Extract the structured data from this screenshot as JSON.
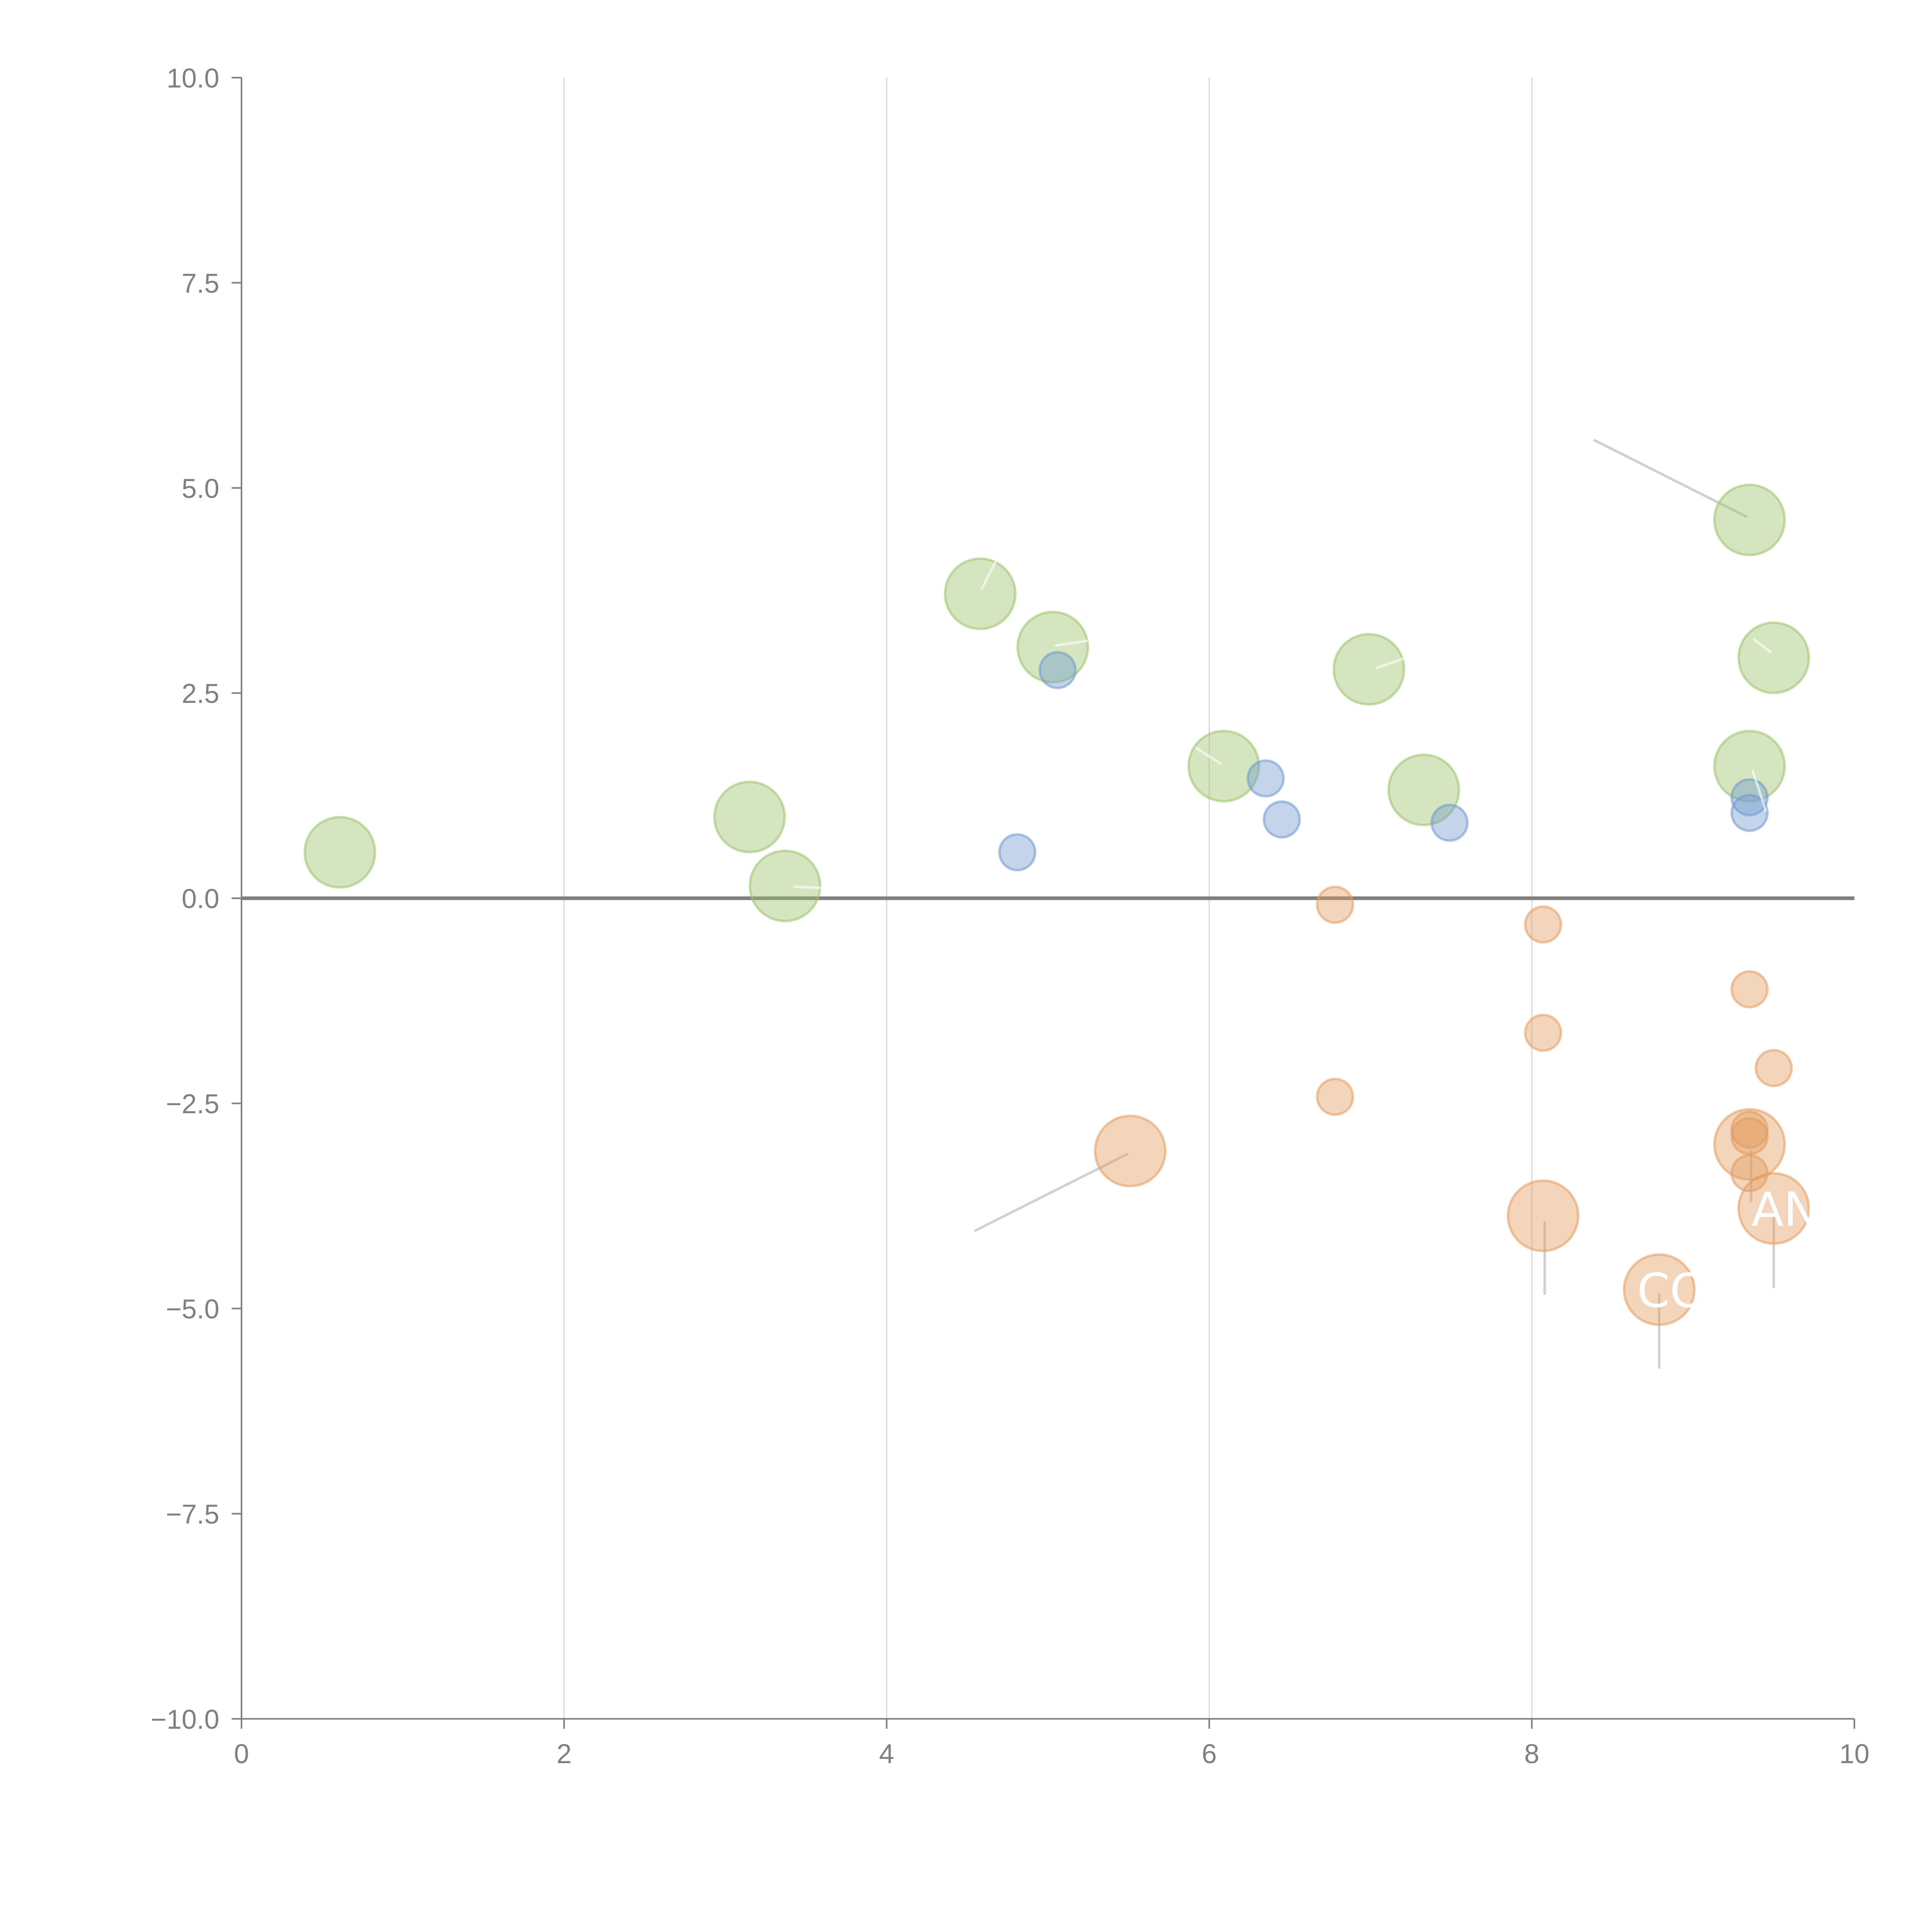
{
  "chart_data": {
    "type": "scatter",
    "subtype": "bubble",
    "title": "",
    "xlabel": "",
    "ylabel": "",
    "xlim": [
      0,
      10
    ],
    "ylim": [
      -10,
      10
    ],
    "x_ticks": [
      "0",
      "2",
      "4",
      "6",
      "8",
      "10"
    ],
    "x_tick_values": [
      0,
      2,
      4,
      6,
      8,
      10
    ],
    "y_ticks": [
      "10.0",
      "7.5",
      "5.0",
      "2.5",
      "0.0",
      "−2.5",
      "−5.0",
      "−7.5",
      "−10.0"
    ],
    "y_tick_values": [
      10,
      7.5,
      5,
      2.5,
      0,
      -2.5,
      -5,
      -7.5,
      -10
    ],
    "grid": "vertical-only",
    "zero_line": true,
    "legend": "none",
    "series": [
      {
        "name": "green",
        "color": "#9cc26a",
        "size": "large",
        "points": [
          {
            "x": 0.61,
            "y": 0.56
          },
          {
            "x": 3.15,
            "y": 0.99
          },
          {
            "x": 3.37,
            "y": 0.15
          },
          {
            "x": 4.58,
            "y": 3.71
          },
          {
            "x": 5.03,
            "y": 3.06
          },
          {
            "x": 6.09,
            "y": 1.61
          },
          {
            "x": 6.99,
            "y": 2.79
          },
          {
            "x": 7.33,
            "y": 1.32
          },
          {
            "x": 9.35,
            "y": 4.61
          },
          {
            "x": 9.5,
            "y": 2.93
          },
          {
            "x": 9.35,
            "y": 1.61
          }
        ]
      },
      {
        "name": "blue",
        "color": "#6f98d0",
        "size": "small",
        "points": [
          {
            "x": 5.06,
            "y": 2.78
          },
          {
            "x": 4.81,
            "y": 0.56
          },
          {
            "x": 6.35,
            "y": 1.46
          },
          {
            "x": 6.45,
            "y": 0.96
          },
          {
            "x": 7.49,
            "y": 0.92
          },
          {
            "x": 9.35,
            "y": 1.23
          },
          {
            "x": 9.35,
            "y": 1.04
          }
        ]
      },
      {
        "name": "orange",
        "color": "#e39a5c",
        "points": [
          {
            "x": 6.78,
            "y": -0.08,
            "size": "small"
          },
          {
            "x": 8.07,
            "y": -0.32,
            "size": "small"
          },
          {
            "x": 6.78,
            "y": -2.42,
            "size": "small"
          },
          {
            "x": 8.07,
            "y": -1.64,
            "size": "small"
          },
          {
            "x": 9.35,
            "y": -1.11,
            "size": "small"
          },
          {
            "x": 9.5,
            "y": -2.07,
            "size": "small"
          },
          {
            "x": 9.35,
            "y": -2.82,
            "size": "small"
          },
          {
            "x": 9.35,
            "y": -2.9,
            "size": "small"
          },
          {
            "x": 9.35,
            "y": -3.35,
            "size": "small"
          },
          {
            "x": 5.51,
            "y": -3.08,
            "size": "large"
          },
          {
            "x": 9.35,
            "y": -3.0,
            "size": "large"
          },
          {
            "x": 8.07,
            "y": -3.87,
            "size": "large"
          },
          {
            "x": 9.5,
            "y": -3.78,
            "size": "large"
          },
          {
            "x": 8.79,
            "y": -4.77,
            "size": "large"
          }
        ]
      }
    ],
    "annotations": [
      {
        "text": "AN",
        "x": 9.5,
        "y": -3.78,
        "color": "#ffffff"
      },
      {
        "text": "CO",
        "x": 8.79,
        "y": -4.77,
        "color": "#ffffff"
      }
    ],
    "leader_lines": [
      {
        "from": [
          8.39,
          5.58
        ],
        "to": [
          9.33,
          4.65
        ],
        "color": "#b0b0b0"
      },
      {
        "from": [
          4.55,
          -4.05
        ],
        "to": [
          5.49,
          -3.12
        ],
        "color": "#b0b0b0"
      },
      {
        "from": [
          8.08,
          -3.95
        ],
        "to": [
          8.08,
          -4.82
        ],
        "color": "#b0b0b0"
      },
      {
        "from": [
          8.79,
          -4.83
        ],
        "to": [
          8.79,
          -5.72
        ],
        "color": "#b0b0b0"
      },
      {
        "from": [
          9.5,
          -3.84
        ],
        "to": [
          9.5,
          -4.74
        ],
        "color": "#b0b0b0"
      },
      {
        "from": [
          9.36,
          -3.09
        ],
        "to": [
          9.36,
          -3.69
        ],
        "color": "#b0b0b0"
      },
      {
        "from": [
          4.59,
          3.77
        ],
        "to": [
          4.68,
          4.12
        ],
        "color": "#ffffff"
      },
      {
        "from": [
          5.05,
          3.08
        ],
        "to": [
          5.35,
          3.17
        ],
        "color": "#ffffff"
      },
      {
        "from": [
          6.07,
          1.64
        ],
        "to": [
          5.92,
          1.83
        ],
        "color": "#ffffff"
      },
      {
        "from": [
          7.04,
          2.81
        ],
        "to": [
          7.22,
          2.93
        ],
        "color": "#ffffff"
      },
      {
        "from": [
          3.43,
          0.14
        ],
        "to": [
          3.78,
          0.11
        ],
        "color": "#ffffff"
      },
      {
        "from": [
          9.48,
          3.0
        ],
        "to": [
          9.38,
          3.15
        ],
        "color": "#ffffff"
      },
      {
        "from": [
          9.37,
          1.55
        ],
        "to": [
          9.45,
          1.07
        ],
        "color": "#ffffff"
      }
    ]
  }
}
